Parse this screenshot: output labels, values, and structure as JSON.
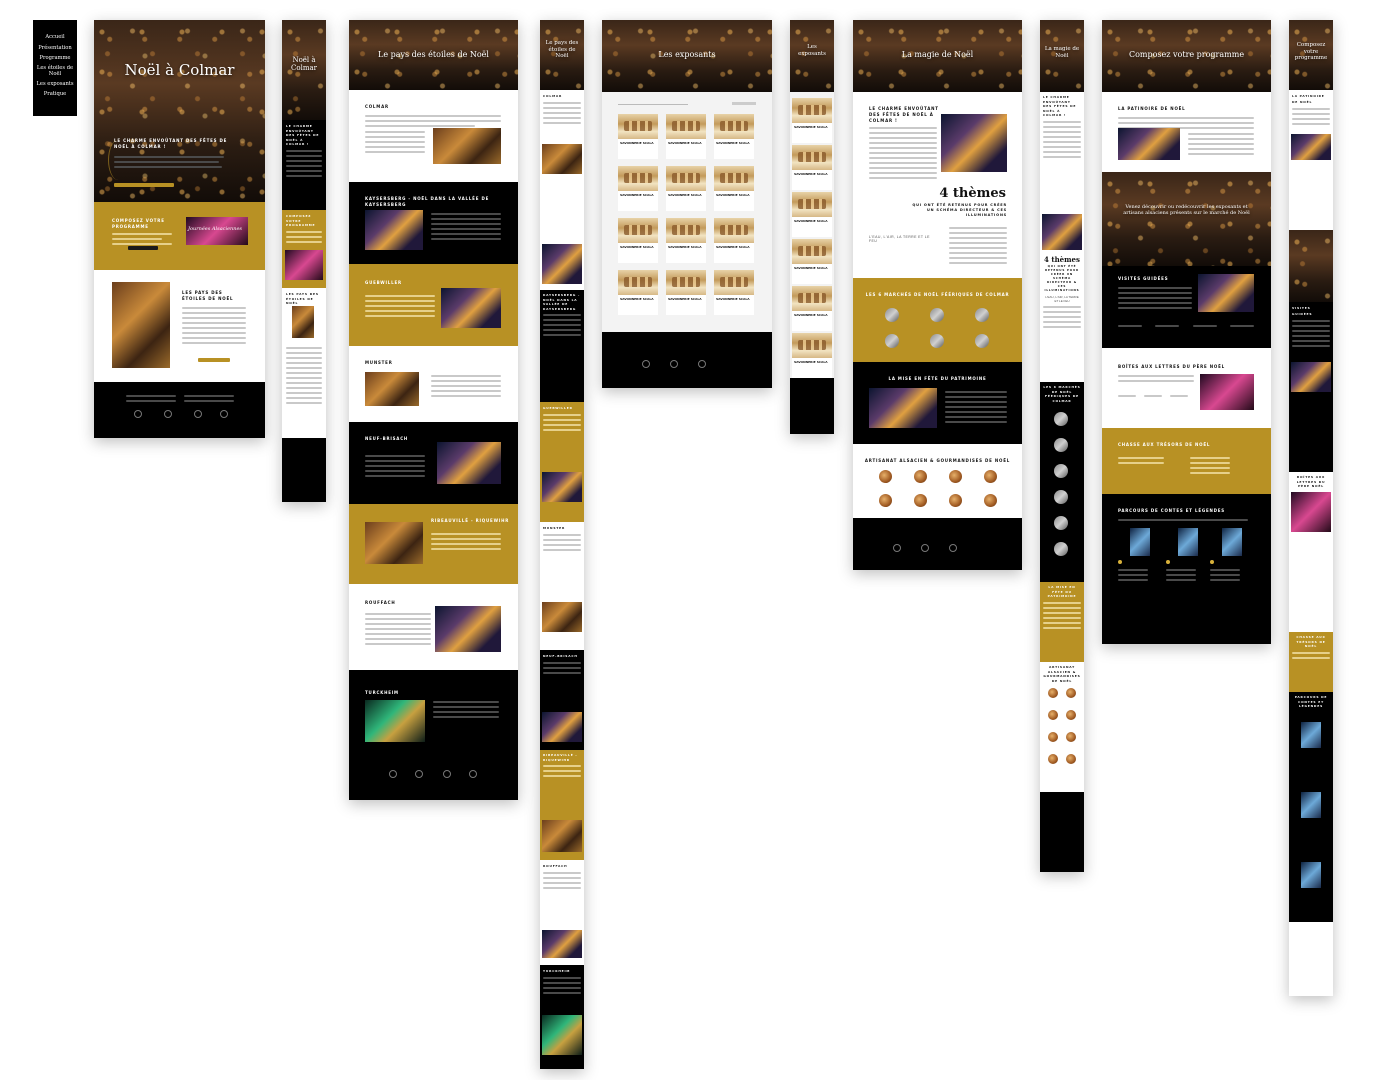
{
  "nav": {
    "items": [
      "Accueil",
      "Présentation",
      "Programme",
      "Les étoiles de Noël",
      "Les exposants",
      "Pratique"
    ]
  },
  "home": {
    "hero_title": "Noël à Colmar",
    "intro_heading": "Le charme envoûtant des fêtes de Noël à Colmar !",
    "program_heading": "Composez votre programme",
    "program_script": "Journées Alsaciennes",
    "stars_heading": "Les pays des étoiles de Noël"
  },
  "home_mobile": {
    "hero_title": "Noël à Colmar",
    "intro_heading": "Le charme envoûtant des fêtes de Noël à Colmar !",
    "program_heading": "Composez votre programme",
    "stars_heading": "Les pays des étoiles de Noël"
  },
  "stars": {
    "hero_title": "Le pays des étoiles de Noël",
    "sections": [
      "Colmar",
      "Kaysersberg - Noël dans la vallée de Kaysersberg",
      "Guebwiller",
      "Munster",
      "Neuf-Brisach",
      "Ribeauvillé - Riquewihr",
      "Rouffach",
      "Turckheim"
    ]
  },
  "stars_mobile": {
    "hero_title": "Le pays des étoiles de Noël",
    "sections": [
      "Colmar",
      "Kaysersberg - Noël dans la vallée de Kaysersberg",
      "Guebwiller",
      "Munster",
      "Neuf-Brisach",
      "Ribeauvillé - Riquewihr",
      "Rouffach",
      "Turckheim"
    ]
  },
  "exhibitors": {
    "hero_title": "Les exposants",
    "card_title": "SAVONNERIE SCALA",
    "cards_count": 12
  },
  "exhibitors_mobile": {
    "hero_title": "Les exposants",
    "card_title": "SAVONNERIE SCALA"
  },
  "magic": {
    "hero_title": "La magie de Noël",
    "intro_heading": "Le charme envoûtant des fêtes de Noël à Colmar !",
    "themes_title": "4 thèmes",
    "themes_sub": "qui ont été retenus pour créer un schéma directeur & ces illuminations",
    "themes_list": "L'eau, l'air, la terre et le feu",
    "markets_heading": "Les 6 marchés de Noël féériques de Colmar",
    "heritage_heading": "La mise en fête du patrimoine",
    "crafts_heading": "Artisanat alsacien & gourmandises de Noël"
  },
  "magic_mobile": {
    "hero_title": "La magie de Noël",
    "intro_heading": "Le charme envoûtant des fêtes de Noël à Colmar !",
    "themes_title": "4 thèmes",
    "themes_sub": "qui ont été retenus pour créer un schéma directeur & ces illuminations",
    "themes_list": "L'eau, l'air, la terre et le feu",
    "markets_heading": "Les 6 marchés de Noël féériques de Colmar",
    "heritage_heading": "La mise en fête du patrimoine",
    "crafts_heading": "Artisanat alsacien & gourmandises de Noël"
  },
  "program": {
    "hero_title": "Composez votre programme",
    "section1": "La patinoire de Noël",
    "banner_text": "Venez découvrir ou redécouvrir les exposants et artisans alsaciens présents sur le marché de Noël",
    "visits": "Visites guidées",
    "letters": "Boîtes aux lettres du Père Noël",
    "treasure": "Chasse aux trésors de Noël",
    "tales": "Parcours de contes et légendes"
  },
  "program_mobile": {
    "hero_title": "Composez votre programme",
    "section1": "La patinoire de Noël",
    "visits": "Visites guidées",
    "letters": "Boîtes aux lettres du Père Noël",
    "treasure": "Chasse aux trésors de Noël",
    "tales": "Parcours de contes et légendes"
  },
  "colors": {
    "gold": "#b89124",
    "black": "#000000",
    "white": "#ffffff"
  }
}
